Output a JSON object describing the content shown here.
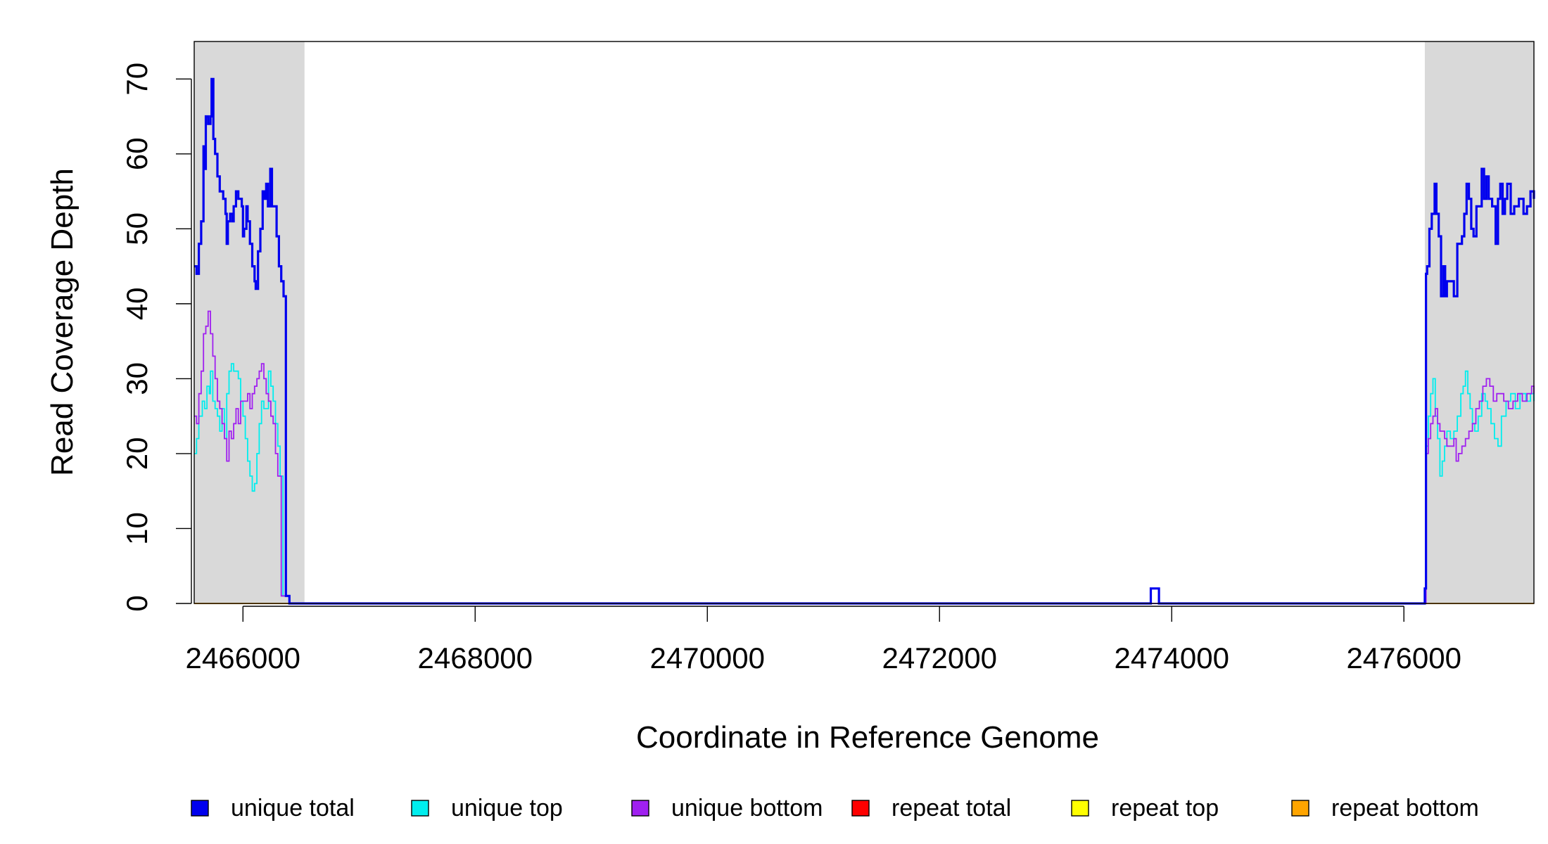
{
  "chart_data": {
    "type": "line",
    "title": "",
    "xlabel": "Coordinate in Reference Genome",
    "ylabel": "Read Coverage Depth",
    "xlim": [
      2465580,
      2477120
    ],
    "ylim": [
      0,
      75
    ],
    "x_ticks": [
      2466000,
      2468000,
      2470000,
      2472000,
      2474000,
      2476000
    ],
    "x_tick_labels": [
      "2466000",
      "2468000",
      "2470000",
      "2472000",
      "2474000",
      "2476000"
    ],
    "y_ticks": [
      0,
      10,
      20,
      30,
      40,
      50,
      60,
      70
    ],
    "y_tick_labels": [
      "0",
      "10",
      "20",
      "30",
      "40",
      "50",
      "60",
      "70"
    ],
    "grid": false,
    "legend_position": "bottom",
    "flank_regions": [
      [
        2465580,
        2466530
      ],
      [
        2476180,
        2477120
      ]
    ],
    "flank_color": "#d9d9d9",
    "series": [
      {
        "name": "unique total",
        "color": "#0000ee",
        "points": [
          [
            2465580,
            45
          ],
          [
            2465600,
            44
          ],
          [
            2465620,
            48
          ],
          [
            2465640,
            51
          ],
          [
            2465660,
            61
          ],
          [
            2465670,
            58
          ],
          [
            2465680,
            65
          ],
          [
            2465700,
            64
          ],
          [
            2465720,
            65
          ],
          [
            2465730,
            70
          ],
          [
            2465745,
            62
          ],
          [
            2465760,
            60
          ],
          [
            2465780,
            57
          ],
          [
            2465800,
            55
          ],
          [
            2465830,
            54
          ],
          [
            2465850,
            52
          ],
          [
            2465860,
            48
          ],
          [
            2465870,
            51
          ],
          [
            2465890,
            52
          ],
          [
            2465910,
            51
          ],
          [
            2465920,
            53
          ],
          [
            2465940,
            55
          ],
          [
            2465960,
            54
          ],
          [
            2465990,
            53
          ],
          [
            2466000,
            49
          ],
          [
            2466010,
            50
          ],
          [
            2466030,
            53
          ],
          [
            2466040,
            51
          ],
          [
            2466060,
            48
          ],
          [
            2466080,
            45
          ],
          [
            2466100,
            43
          ],
          [
            2466110,
            42
          ],
          [
            2466130,
            47
          ],
          [
            2466150,
            50
          ],
          [
            2466170,
            55
          ],
          [
            2466185,
            54
          ],
          [
            2466200,
            56
          ],
          [
            2466215,
            53
          ],
          [
            2466235,
            58
          ],
          [
            2466250,
            53
          ],
          [
            2466270,
            53
          ],
          [
            2466290,
            49
          ],
          [
            2466310,
            45
          ],
          [
            2466330,
            43
          ],
          [
            2466350,
            41
          ],
          [
            2466370,
            1
          ],
          [
            2466400,
            0
          ],
          [
            2466530,
            0
          ],
          [
            2473800,
            0
          ],
          [
            2473820,
            2
          ],
          [
            2473880,
            2
          ],
          [
            2473890,
            0
          ],
          [
            2476150,
            0
          ],
          [
            2476180,
            2
          ],
          [
            2476190,
            44
          ],
          [
            2476200,
            45
          ],
          [
            2476220,
            50
          ],
          [
            2476240,
            52
          ],
          [
            2476265,
            56
          ],
          [
            2476280,
            52
          ],
          [
            2476300,
            49
          ],
          [
            2476320,
            41
          ],
          [
            2476340,
            45
          ],
          [
            2476355,
            41
          ],
          [
            2476370,
            43
          ],
          [
            2476400,
            43
          ],
          [
            2476430,
            41
          ],
          [
            2476460,
            48
          ],
          [
            2476500,
            49
          ],
          [
            2476520,
            52
          ],
          [
            2476540,
            56
          ],
          [
            2476560,
            54
          ],
          [
            2476580,
            50
          ],
          [
            2476600,
            49
          ],
          [
            2476625,
            53
          ],
          [
            2476650,
            53
          ],
          [
            2476670,
            58
          ],
          [
            2476690,
            54
          ],
          [
            2476710,
            57
          ],
          [
            2476730,
            54
          ],
          [
            2476760,
            53
          ],
          [
            2476790,
            48
          ],
          [
            2476810,
            54
          ],
          [
            2476830,
            56
          ],
          [
            2476850,
            52
          ],
          [
            2476870,
            54
          ],
          [
            2476890,
            56
          ],
          [
            2476920,
            52
          ],
          [
            2476950,
            53
          ],
          [
            2476990,
            54
          ],
          [
            2477030,
            52
          ],
          [
            2477060,
            53
          ],
          [
            2477090,
            55
          ],
          [
            2477120,
            54
          ]
        ]
      },
      {
        "name": "unique top",
        "color": "#00eeee",
        "points": [
          [
            2465580,
            20
          ],
          [
            2465600,
            22
          ],
          [
            2465620,
            25
          ],
          [
            2465650,
            27
          ],
          [
            2465670,
            26
          ],
          [
            2465690,
            29
          ],
          [
            2465710,
            28
          ],
          [
            2465720,
            31
          ],
          [
            2465740,
            27
          ],
          [
            2465760,
            26
          ],
          [
            2465780,
            25
          ],
          [
            2465800,
            23
          ],
          [
            2465820,
            26
          ],
          [
            2465840,
            22
          ],
          [
            2465860,
            28
          ],
          [
            2465880,
            31
          ],
          [
            2465900,
            32
          ],
          [
            2465920,
            31
          ],
          [
            2465940,
            31
          ],
          [
            2465960,
            30
          ],
          [
            2465980,
            27
          ],
          [
            2466000,
            25
          ],
          [
            2466020,
            22
          ],
          [
            2466040,
            19
          ],
          [
            2466060,
            17
          ],
          [
            2466080,
            15
          ],
          [
            2466100,
            16
          ],
          [
            2466120,
            20
          ],
          [
            2466140,
            24
          ],
          [
            2466160,
            27
          ],
          [
            2466180,
            26
          ],
          [
            2466200,
            26
          ],
          [
            2466220,
            31
          ],
          [
            2466240,
            29
          ],
          [
            2466260,
            27
          ],
          [
            2466280,
            24
          ],
          [
            2466300,
            21
          ],
          [
            2466320,
            17
          ],
          [
            2466345,
            1
          ],
          [
            2466400,
            0
          ],
          [
            2476150,
            0
          ],
          [
            2476190,
            21
          ],
          [
            2476210,
            25
          ],
          [
            2476230,
            28
          ],
          [
            2476250,
            30
          ],
          [
            2476270,
            25
          ],
          [
            2476290,
            22
          ],
          [
            2476310,
            17
          ],
          [
            2476330,
            19
          ],
          [
            2476350,
            21
          ],
          [
            2476370,
            23
          ],
          [
            2476400,
            22
          ],
          [
            2476430,
            23
          ],
          [
            2476460,
            25
          ],
          [
            2476490,
            28
          ],
          [
            2476510,
            29
          ],
          [
            2476530,
            31
          ],
          [
            2476550,
            28
          ],
          [
            2476570,
            26
          ],
          [
            2476590,
            24
          ],
          [
            2476610,
            23
          ],
          [
            2476640,
            25
          ],
          [
            2476670,
            28
          ],
          [
            2476700,
            27
          ],
          [
            2476720,
            26
          ],
          [
            2476750,
            24
          ],
          [
            2476780,
            22
          ],
          [
            2476810,
            21
          ],
          [
            2476840,
            25
          ],
          [
            2476880,
            27
          ],
          [
            2476920,
            28
          ],
          [
            2476960,
            26
          ],
          [
            2477000,
            28
          ],
          [
            2477050,
            27
          ],
          [
            2477090,
            28
          ],
          [
            2477120,
            27
          ]
        ]
      },
      {
        "name": "unique bottom",
        "color": "#a020f0",
        "points": [
          [
            2465580,
            25
          ],
          [
            2465600,
            24
          ],
          [
            2465620,
            28
          ],
          [
            2465640,
            31
          ],
          [
            2465660,
            36
          ],
          [
            2465680,
            37
          ],
          [
            2465700,
            39
          ],
          [
            2465720,
            36
          ],
          [
            2465740,
            33
          ],
          [
            2465760,
            30
          ],
          [
            2465780,
            27
          ],
          [
            2465800,
            26
          ],
          [
            2465820,
            24
          ],
          [
            2465840,
            22
          ],
          [
            2465860,
            19
          ],
          [
            2465880,
            23
          ],
          [
            2465900,
            22
          ],
          [
            2465920,
            24
          ],
          [
            2465940,
            26
          ],
          [
            2465960,
            24
          ],
          [
            2465980,
            27
          ],
          [
            2466000,
            27
          ],
          [
            2466020,
            27
          ],
          [
            2466040,
            28
          ],
          [
            2466060,
            26
          ],
          [
            2466080,
            28
          ],
          [
            2466100,
            29
          ],
          [
            2466120,
            30
          ],
          [
            2466140,
            31
          ],
          [
            2466160,
            32
          ],
          [
            2466180,
            30
          ],
          [
            2466200,
            28
          ],
          [
            2466220,
            27
          ],
          [
            2466240,
            25
          ],
          [
            2466260,
            24
          ],
          [
            2466280,
            20
          ],
          [
            2466300,
            17
          ],
          [
            2466330,
            1
          ],
          [
            2466400,
            0
          ],
          [
            2476150,
            0
          ],
          [
            2476190,
            20
          ],
          [
            2476210,
            22
          ],
          [
            2476230,
            24
          ],
          [
            2476250,
            25
          ],
          [
            2476270,
            26
          ],
          [
            2476290,
            24
          ],
          [
            2476310,
            23
          ],
          [
            2476330,
            23
          ],
          [
            2476350,
            22
          ],
          [
            2476370,
            21
          ],
          [
            2476400,
            21
          ],
          [
            2476430,
            22
          ],
          [
            2476450,
            19
          ],
          [
            2476470,
            20
          ],
          [
            2476500,
            21
          ],
          [
            2476530,
            22
          ],
          [
            2476560,
            23
          ],
          [
            2476590,
            24
          ],
          [
            2476620,
            26
          ],
          [
            2476650,
            27
          ],
          [
            2476680,
            29
          ],
          [
            2476710,
            30
          ],
          [
            2476740,
            29
          ],
          [
            2476770,
            27
          ],
          [
            2476800,
            28
          ],
          [
            2476830,
            28
          ],
          [
            2476860,
            27
          ],
          [
            2476900,
            26
          ],
          [
            2476940,
            27
          ],
          [
            2476980,
            28
          ],
          [
            2477020,
            27
          ],
          [
            2477060,
            28
          ],
          [
            2477100,
            29
          ],
          [
            2477120,
            28
          ]
        ]
      },
      {
        "name": "repeat total",
        "color": "#ff0000",
        "points": [
          [
            2465580,
            0
          ],
          [
            2477120,
            0
          ]
        ]
      },
      {
        "name": "repeat top",
        "color": "#ffff00",
        "points": [
          [
            2465580,
            0
          ],
          [
            2477120,
            0
          ]
        ]
      },
      {
        "name": "repeat bottom",
        "color": "#ffa500",
        "points": [
          [
            2465580,
            0
          ],
          [
            2477120,
            0
          ]
        ]
      }
    ]
  }
}
